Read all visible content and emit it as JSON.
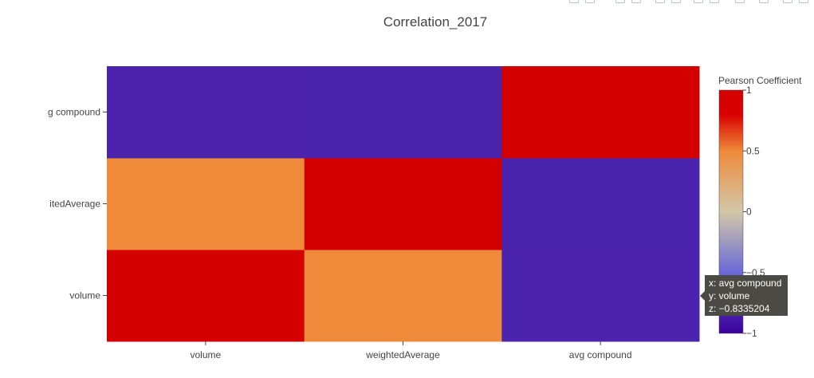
{
  "chart_data": {
    "type": "heatmap",
    "title": "Correlation_2017",
    "x_categories": [
      "volume",
      "weightedAverage",
      "avg compound"
    ],
    "y_categories": [
      "volume",
      "weightedAverage",
      "avg compound"
    ],
    "y_tick_labels_shown": [
      "volume",
      "itedAverage",
      "g compound"
    ],
    "z": [
      [
        1,
        0.5,
        -0.8335204
      ],
      [
        0.5,
        1,
        -0.83
      ],
      [
        -0.8335204,
        -0.83,
        1
      ]
    ],
    "zmin": -1,
    "zmax": 1,
    "colorbar": {
      "title": "Pearson Coefficient",
      "ticks": [
        1,
        0.5,
        0,
        -0.5,
        -1
      ],
      "tick_labels": [
        "1",
        "0.5",
        "0",
        "−0.5",
        "−1"
      ],
      "colorscale": [
        [
          0,
          "#3b0099"
        ],
        [
          0.25,
          "#6a6ad6"
        ],
        [
          0.5,
          "#d3c8a8"
        ],
        [
          0.75,
          "#ee8a3a"
        ],
        [
          0.9,
          "#d90000"
        ],
        [
          1,
          "#d40000"
        ]
      ]
    },
    "hover": {
      "x_line": "x: avg compound",
      "y_line": "y: volume",
      "z_line": "z: −0.8335204"
    }
  }
}
